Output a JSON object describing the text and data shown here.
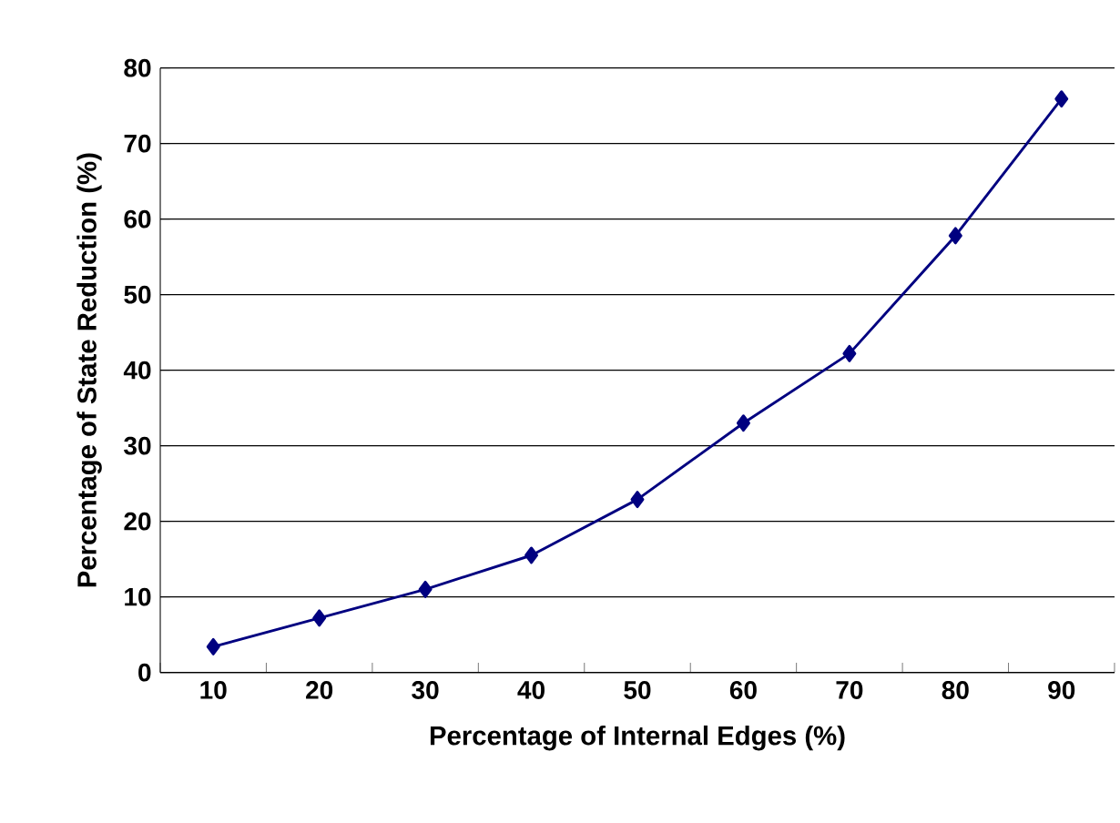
{
  "chart_data": {
    "type": "line",
    "xlabel": "Percentage of Internal Edges (%)",
    "ylabel": "Percentage of State Reduction (%)",
    "categories": [
      "10",
      "20",
      "30",
      "40",
      "50",
      "60",
      "70",
      "80",
      "90"
    ],
    "series": [
      {
        "color": "#000080",
        "values": [
          3.4,
          7.2,
          11,
          15.5,
          22.9,
          33,
          42.2,
          57.8,
          75.9
        ]
      }
    ],
    "ylim": [
      0,
      80
    ],
    "yticks": [
      0,
      10,
      20,
      30,
      40,
      50,
      60,
      70,
      80
    ],
    "grid": "y",
    "marker": "diamond",
    "line_style": "solid"
  }
}
